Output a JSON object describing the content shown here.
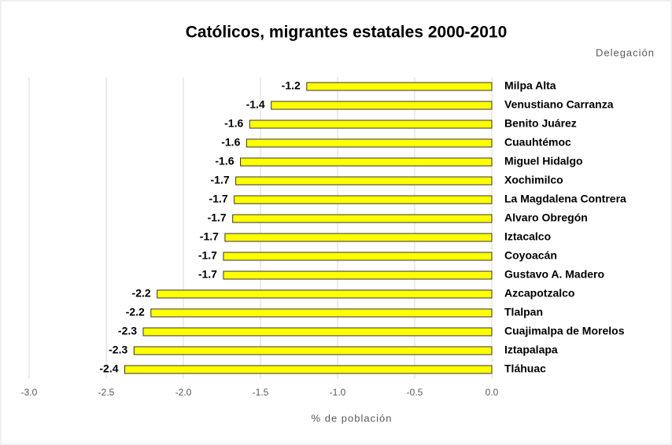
{
  "chart_data": {
    "type": "barh",
    "title": "Católicos, migrantes estatales 2000-2010",
    "category_axis_label": "Delegación",
    "x_axis_label": "% de población",
    "categories": [
      "Milpa Alta",
      "Venustiano Carranza",
      "Benito Juárez",
      "Cuauhtémoc",
      "Miguel Hidalgo",
      "Xochimilco",
      "La Magdalena Contrera",
      "Alvaro Obregón",
      "Iztacalco",
      "Coyoacán",
      "Gustavo A. Madero",
      "Azcapotzalco",
      "Tlalpan",
      "Cuajimalpa de Morelos",
      "Iztapalapa",
      "Tláhuac"
    ],
    "values": [
      -1.2,
      -1.43,
      -1.57,
      -1.59,
      -1.63,
      -1.66,
      -1.67,
      -1.68,
      -1.73,
      -1.74,
      -1.74,
      -2.17,
      -2.21,
      -2.26,
      -2.32,
      -2.38
    ],
    "value_labels": [
      "-1.2",
      "-1.4",
      "-1.6",
      "-1.6",
      "-1.6",
      "-1.7",
      "-1.7",
      "-1.7",
      "-1.7",
      "-1.7",
      "-1.7",
      "-2.2",
      "-2.2",
      "-2.3",
      "-2.3",
      "-2.4"
    ],
    "color": "#ffff00",
    "xlim": [
      -3,
      0
    ],
    "xticks": [
      {
        "value": -3,
        "label": "-3.0"
      },
      {
        "value": -2.5,
        "label": "-2.5"
      },
      {
        "value": -2,
        "label": "-2.0"
      },
      {
        "value": -1.5,
        "label": "-1.5"
      },
      {
        "value": -1,
        "label": "-1.0"
      },
      {
        "value": -0.5,
        "label": "-0.5"
      },
      {
        "value": 0,
        "label": "0.0"
      }
    ],
    "grid": true
  }
}
